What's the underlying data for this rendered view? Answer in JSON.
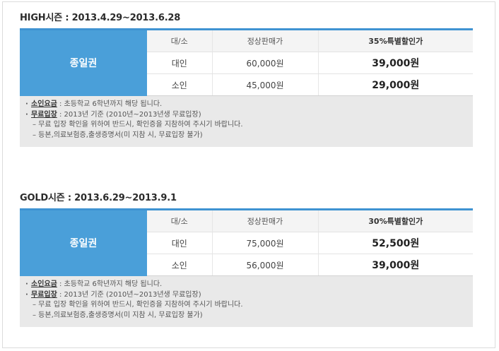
{
  "sections": [
    {
      "title": "HIGH시즌 : 2013.4.29~2013.6.28",
      "ticket": "종일권",
      "headers": {
        "size": "대/소",
        "normal": "정상판매가",
        "discount": "35%특별할인가"
      },
      "rows": [
        {
          "size": "대인",
          "normal": "60,000원",
          "discount": "39,000원"
        },
        {
          "size": "소인",
          "normal": "45,000원",
          "discount": "29,000원"
        }
      ],
      "notes": {
        "child_key": "소인요금",
        "child_text": " : 초등학교 6학년까지 해당 됩니다.",
        "free_key": "무료입장",
        "free_text": " : 2013년 기준 (2010년~2013년생 무료입장)",
        "sub1": "– 무료 입장 확인을 위하여 반드시, 확인증을 지참하여 주시기 바랍니다.",
        "sub2": "– 등본,의료보험증,출생증명서(미 지참 시, 무료입장 불가)"
      }
    },
    {
      "title": "GOLD시즌 : 2013.6.29~2013.9.1",
      "ticket": "종일권",
      "headers": {
        "size": "대/소",
        "normal": "정상판매가",
        "discount": "30%특별할인가"
      },
      "rows": [
        {
          "size": "대인",
          "normal": "75,000원",
          "discount": "52,500원"
        },
        {
          "size": "소인",
          "normal": "56,000원",
          "discount": "39,000원"
        }
      ],
      "notes": {
        "child_key": "소인요금",
        "child_text": " : 초등학교 6학년까지 해당 됩니다.",
        "free_key": "무료입장",
        "free_text": " : 2013년 기준 (2010년~2013년생 무료입장)",
        "sub1": "– 무료 입장 확인을 위하여 반드시, 확인증을 지참하여 주시기 바랍니다.",
        "sub2": "– 등본,의료보험증,출생증명서(미 지참 시, 무료입장 불가)"
      }
    }
  ],
  "colors": {
    "accent": "#3f93d2",
    "ticket_bg": "#4a9fd9",
    "notes_bg": "#e9e9e9"
  }
}
